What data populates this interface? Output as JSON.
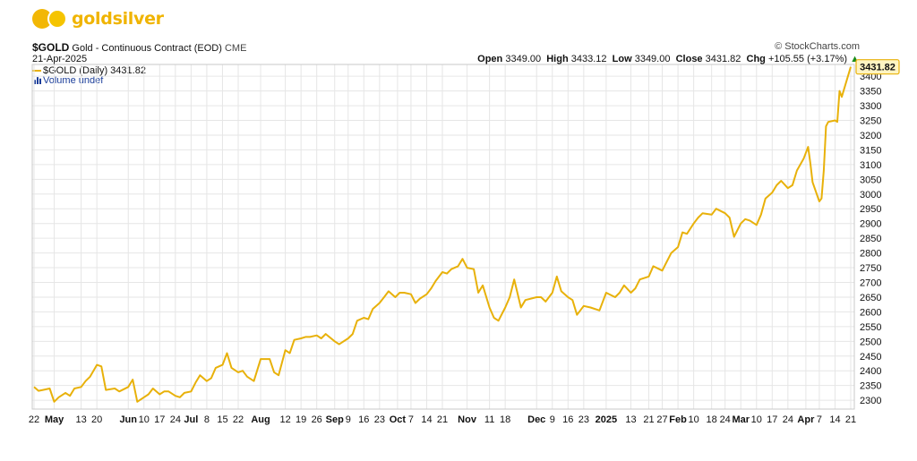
{
  "brand": {
    "name": "goldsilver"
  },
  "header": {
    "symbol": "$GOLD",
    "description": "Gold - Continuous Contract (EOD)",
    "exchange": "CME",
    "date": "21-Apr-2025",
    "credit": "© StockCharts.com",
    "ohlc": {
      "open_label": "Open",
      "open": "3349.00",
      "high_label": "High",
      "high": "3433.12",
      "low_label": "Low",
      "low": "3349.00",
      "close_label": "Close",
      "close": "3431.82",
      "chg_label": "Chg",
      "chg": "+105.55 (+3.17%)",
      "chg_arrow": "▲"
    },
    "legend_series": "$GOLD (Daily) 3431.82",
    "legend_volume": "Volume undef"
  },
  "colors": {
    "line": "#e8b10a",
    "grid": "#e6e6e6",
    "badge_fill": "#fff4c2",
    "up_arrow": "#1a8c1a"
  },
  "chart_data": {
    "type": "line",
    "title": "$GOLD Gold - Continuous Contract (EOD)",
    "ylim": [
      2270,
      3440
    ],
    "y_ticks": [
      2300,
      2350,
      2400,
      2450,
      2500,
      2550,
      2600,
      2650,
      2700,
      2750,
      2800,
      2850,
      2900,
      2950,
      3000,
      3050,
      3100,
      3150,
      3200,
      3250,
      3300,
      3350,
      3400
    ],
    "last_value_label": "3431.82",
    "grid": true,
    "x_ticks": [
      {
        "date": "2024-04-22",
        "label": "22",
        "bold": false
      },
      {
        "date": "2024-05-01",
        "label": "May",
        "bold": true
      },
      {
        "date": "2024-05-13",
        "label": "13",
        "bold": false
      },
      {
        "date": "2024-05-20",
        "label": "20",
        "bold": false
      },
      {
        "date": "2024-06-03",
        "label": "Jun",
        "bold": true
      },
      {
        "date": "2024-06-10",
        "label": "10",
        "bold": false
      },
      {
        "date": "2024-06-17",
        "label": "17",
        "bold": false
      },
      {
        "date": "2024-06-24",
        "label": "24",
        "bold": false
      },
      {
        "date": "2024-07-01",
        "label": "Jul",
        "bold": true
      },
      {
        "date": "2024-07-08",
        "label": "8",
        "bold": false
      },
      {
        "date": "2024-07-15",
        "label": "15",
        "bold": false
      },
      {
        "date": "2024-07-22",
        "label": "22",
        "bold": false
      },
      {
        "date": "2024-08-01",
        "label": "Aug",
        "bold": true
      },
      {
        "date": "2024-08-12",
        "label": "12",
        "bold": false
      },
      {
        "date": "2024-08-19",
        "label": "19",
        "bold": false
      },
      {
        "date": "2024-08-26",
        "label": "26",
        "bold": false
      },
      {
        "date": "2024-09-03",
        "label": "Sep",
        "bold": true
      },
      {
        "date": "2024-09-09",
        "label": "9",
        "bold": false
      },
      {
        "date": "2024-09-16",
        "label": "16",
        "bold": false
      },
      {
        "date": "2024-09-23",
        "label": "23",
        "bold": false
      },
      {
        "date": "2024-10-01",
        "label": "Oct",
        "bold": true
      },
      {
        "date": "2024-10-07",
        "label": "7",
        "bold": false
      },
      {
        "date": "2024-10-14",
        "label": "14",
        "bold": false
      },
      {
        "date": "2024-10-21",
        "label": "21",
        "bold": false
      },
      {
        "date": "2024-11-01",
        "label": "Nov",
        "bold": true
      },
      {
        "date": "2024-11-11",
        "label": "11",
        "bold": false
      },
      {
        "date": "2024-11-18",
        "label": "18",
        "bold": false
      },
      {
        "date": "2024-12-02",
        "label": "Dec",
        "bold": true
      },
      {
        "date": "2024-12-09",
        "label": "9",
        "bold": false
      },
      {
        "date": "2024-12-16",
        "label": "16",
        "bold": false
      },
      {
        "date": "2024-12-23",
        "label": "23",
        "bold": false
      },
      {
        "date": "2025-01-02",
        "label": "2025",
        "bold": true
      },
      {
        "date": "2025-01-13",
        "label": "13",
        "bold": false
      },
      {
        "date": "2025-01-21",
        "label": "21",
        "bold": false
      },
      {
        "date": "2025-01-27",
        "label": "27",
        "bold": false
      },
      {
        "date": "2025-02-03",
        "label": "Feb",
        "bold": true
      },
      {
        "date": "2025-02-10",
        "label": "10",
        "bold": false
      },
      {
        "date": "2025-02-18",
        "label": "18",
        "bold": false
      },
      {
        "date": "2025-02-24",
        "label": "24",
        "bold": false
      },
      {
        "date": "2025-03-03",
        "label": "Mar",
        "bold": true
      },
      {
        "date": "2025-03-10",
        "label": "10",
        "bold": false
      },
      {
        "date": "2025-03-17",
        "label": "17",
        "bold": false
      },
      {
        "date": "2025-03-24",
        "label": "24",
        "bold": false
      },
      {
        "date": "2025-04-01",
        "label": "Apr",
        "bold": true
      },
      {
        "date": "2025-04-07",
        "label": "7",
        "bold": false
      },
      {
        "date": "2025-04-14",
        "label": "14",
        "bold": false
      },
      {
        "date": "2025-04-21",
        "label": "21",
        "bold": false
      }
    ],
    "x_range": [
      "2024-04-22",
      "2025-04-21"
    ],
    "series": [
      {
        "values": [
          [
            "2024-04-22",
            2345
          ],
          [
            "2024-04-24",
            2332
          ],
          [
            "2024-04-26",
            2335
          ],
          [
            "2024-04-29",
            2340
          ],
          [
            "2024-05-01",
            2295
          ],
          [
            "2024-05-03",
            2310
          ],
          [
            "2024-05-06",
            2325
          ],
          [
            "2024-05-08",
            2315
          ],
          [
            "2024-05-10",
            2340
          ],
          [
            "2024-05-13",
            2345
          ],
          [
            "2024-05-15",
            2365
          ],
          [
            "2024-05-17",
            2380
          ],
          [
            "2024-05-20",
            2420
          ],
          [
            "2024-05-22",
            2415
          ],
          [
            "2024-05-24",
            2335
          ],
          [
            "2024-05-28",
            2340
          ],
          [
            "2024-05-30",
            2330
          ],
          [
            "2024-06-03",
            2345
          ],
          [
            "2024-06-05",
            2370
          ],
          [
            "2024-06-07",
            2295
          ],
          [
            "2024-06-10",
            2310
          ],
          [
            "2024-06-12",
            2320
          ],
          [
            "2024-06-14",
            2340
          ],
          [
            "2024-06-17",
            2320
          ],
          [
            "2024-06-19",
            2330
          ],
          [
            "2024-06-21",
            2330
          ],
          [
            "2024-06-24",
            2315
          ],
          [
            "2024-06-26",
            2310
          ],
          [
            "2024-06-28",
            2325
          ],
          [
            "2024-07-01",
            2330
          ],
          [
            "2024-07-03",
            2360
          ],
          [
            "2024-07-05",
            2385
          ],
          [
            "2024-07-08",
            2365
          ],
          [
            "2024-07-10",
            2375
          ],
          [
            "2024-07-12",
            2410
          ],
          [
            "2024-07-15",
            2420
          ],
          [
            "2024-07-17",
            2460
          ],
          [
            "2024-07-19",
            2410
          ],
          [
            "2024-07-22",
            2395
          ],
          [
            "2024-07-24",
            2400
          ],
          [
            "2024-07-26",
            2380
          ],
          [
            "2024-07-29",
            2365
          ],
          [
            "2024-08-01",
            2440
          ],
          [
            "2024-08-05",
            2440
          ],
          [
            "2024-08-07",
            2395
          ],
          [
            "2024-08-09",
            2385
          ],
          [
            "2024-08-12",
            2470
          ],
          [
            "2024-08-14",
            2460
          ],
          [
            "2024-08-16",
            2505
          ],
          [
            "2024-08-19",
            2510
          ],
          [
            "2024-08-21",
            2515
          ],
          [
            "2024-08-23",
            2515
          ],
          [
            "2024-08-26",
            2520
          ],
          [
            "2024-08-28",
            2510
          ],
          [
            "2024-08-30",
            2525
          ],
          [
            "2024-09-03",
            2500
          ],
          [
            "2024-09-05",
            2490
          ],
          [
            "2024-09-09",
            2510
          ],
          [
            "2024-09-11",
            2525
          ],
          [
            "2024-09-13",
            2570
          ],
          [
            "2024-09-16",
            2580
          ],
          [
            "2024-09-18",
            2575
          ],
          [
            "2024-09-20",
            2610
          ],
          [
            "2024-09-23",
            2630
          ],
          [
            "2024-09-25",
            2650
          ],
          [
            "2024-09-27",
            2670
          ],
          [
            "2024-09-30",
            2650
          ],
          [
            "2024-10-02",
            2665
          ],
          [
            "2024-10-04",
            2665
          ],
          [
            "2024-10-07",
            2660
          ],
          [
            "2024-10-09",
            2630
          ],
          [
            "2024-10-11",
            2645
          ],
          [
            "2024-10-14",
            2660
          ],
          [
            "2024-10-16",
            2680
          ],
          [
            "2024-10-18",
            2705
          ],
          [
            "2024-10-21",
            2735
          ],
          [
            "2024-10-23",
            2730
          ],
          [
            "2024-10-25",
            2745
          ],
          [
            "2024-10-28",
            2755
          ],
          [
            "2024-10-30",
            2780
          ],
          [
            "2024-11-01",
            2750
          ],
          [
            "2024-11-04",
            2745
          ],
          [
            "2024-11-06",
            2665
          ],
          [
            "2024-11-08",
            2690
          ],
          [
            "2024-11-11",
            2615
          ],
          [
            "2024-11-13",
            2580
          ],
          [
            "2024-11-15",
            2570
          ],
          [
            "2024-11-18",
            2615
          ],
          [
            "2024-11-20",
            2650
          ],
          [
            "2024-11-22",
            2710
          ],
          [
            "2024-11-25",
            2615
          ],
          [
            "2024-11-27",
            2640
          ],
          [
            "2024-12-02",
            2650
          ],
          [
            "2024-12-04",
            2650
          ],
          [
            "2024-12-06",
            2635
          ],
          [
            "2024-12-09",
            2665
          ],
          [
            "2024-12-11",
            2720
          ],
          [
            "2024-12-13",
            2670
          ],
          [
            "2024-12-16",
            2650
          ],
          [
            "2024-12-18",
            2640
          ],
          [
            "2024-12-20",
            2590
          ],
          [
            "2024-12-23",
            2620
          ],
          [
            "2024-12-26",
            2615
          ],
          [
            "2024-12-30",
            2605
          ],
          [
            "2025-01-02",
            2665
          ],
          [
            "2025-01-06",
            2650
          ],
          [
            "2025-01-08",
            2665
          ],
          [
            "2025-01-10",
            2690
          ],
          [
            "2025-01-13",
            2665
          ],
          [
            "2025-01-15",
            2680
          ],
          [
            "2025-01-17",
            2710
          ],
          [
            "2025-01-21",
            2720
          ],
          [
            "2025-01-23",
            2755
          ],
          [
            "2025-01-27",
            2740
          ],
          [
            "2025-01-29",
            2770
          ],
          [
            "2025-01-31",
            2800
          ],
          [
            "2025-02-03",
            2820
          ],
          [
            "2025-02-05",
            2870
          ],
          [
            "2025-02-07",
            2865
          ],
          [
            "2025-02-10",
            2900
          ],
          [
            "2025-02-12",
            2920
          ],
          [
            "2025-02-14",
            2935
          ],
          [
            "2025-02-18",
            2930
          ],
          [
            "2025-02-20",
            2950
          ],
          [
            "2025-02-24",
            2935
          ],
          [
            "2025-02-26",
            2920
          ],
          [
            "2025-02-28",
            2855
          ],
          [
            "2025-03-03",
            2900
          ],
          [
            "2025-03-05",
            2915
          ],
          [
            "2025-03-07",
            2910
          ],
          [
            "2025-03-10",
            2895
          ],
          [
            "2025-03-12",
            2930
          ],
          [
            "2025-03-14",
            2985
          ],
          [
            "2025-03-17",
            3005
          ],
          [
            "2025-03-19",
            3030
          ],
          [
            "2025-03-21",
            3045
          ],
          [
            "2025-03-24",
            3020
          ],
          [
            "2025-03-26",
            3030
          ],
          [
            "2025-03-28",
            3080
          ],
          [
            "2025-03-31",
            3120
          ],
          [
            "2025-04-02",
            3160
          ],
          [
            "2025-04-03",
            3105
          ],
          [
            "2025-04-04",
            3040
          ],
          [
            "2025-04-07",
            2975
          ],
          [
            "2025-04-08",
            2985
          ],
          [
            "2025-04-09",
            3080
          ],
          [
            "2025-04-10",
            3230
          ],
          [
            "2025-04-11",
            3245
          ],
          [
            "2025-04-14",
            3250
          ],
          [
            "2025-04-15",
            3245
          ],
          [
            "2025-04-16",
            3350
          ],
          [
            "2025-04-17",
            3330
          ],
          [
            "2025-04-21",
            3431.82
          ]
        ]
      }
    ]
  }
}
